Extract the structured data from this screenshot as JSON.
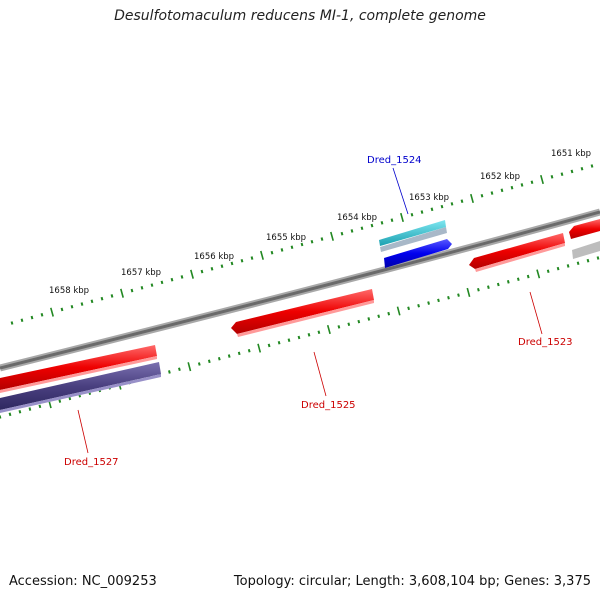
{
  "title": "Desulfotomaculum reducens MI-1, complete genome",
  "footer": {
    "accession": "Accession: NC_009253",
    "summary": "Topology: circular; Length: 3,608,104 bp; Genes: 3,375"
  },
  "colors": {
    "forward_gene": "#ee0000",
    "reverse_gene": "#ee0000",
    "rna_gene": "#2ab8c8",
    "other_gene": "#0000ee",
    "complement_gene": "#4a4080",
    "backbone": "#808080",
    "tick": "#228822",
    "label_blue": "#0000cc",
    "label_red": "#cc0000"
  },
  "ticks": [
    "1651 kbp",
    "1652 kbp",
    "1653 kbp",
    "1654 kbp",
    "1655 kbp",
    "1656 kbp",
    "1657 kbp",
    "1658 kbp"
  ],
  "genes": [
    {
      "label": "Dred_1523",
      "color": "red"
    },
    {
      "label": "Dred_1524",
      "color": "blue"
    },
    {
      "label": "Dred_1525",
      "color": "red"
    },
    {
      "label": "Dred_1527",
      "color": "red"
    }
  ]
}
